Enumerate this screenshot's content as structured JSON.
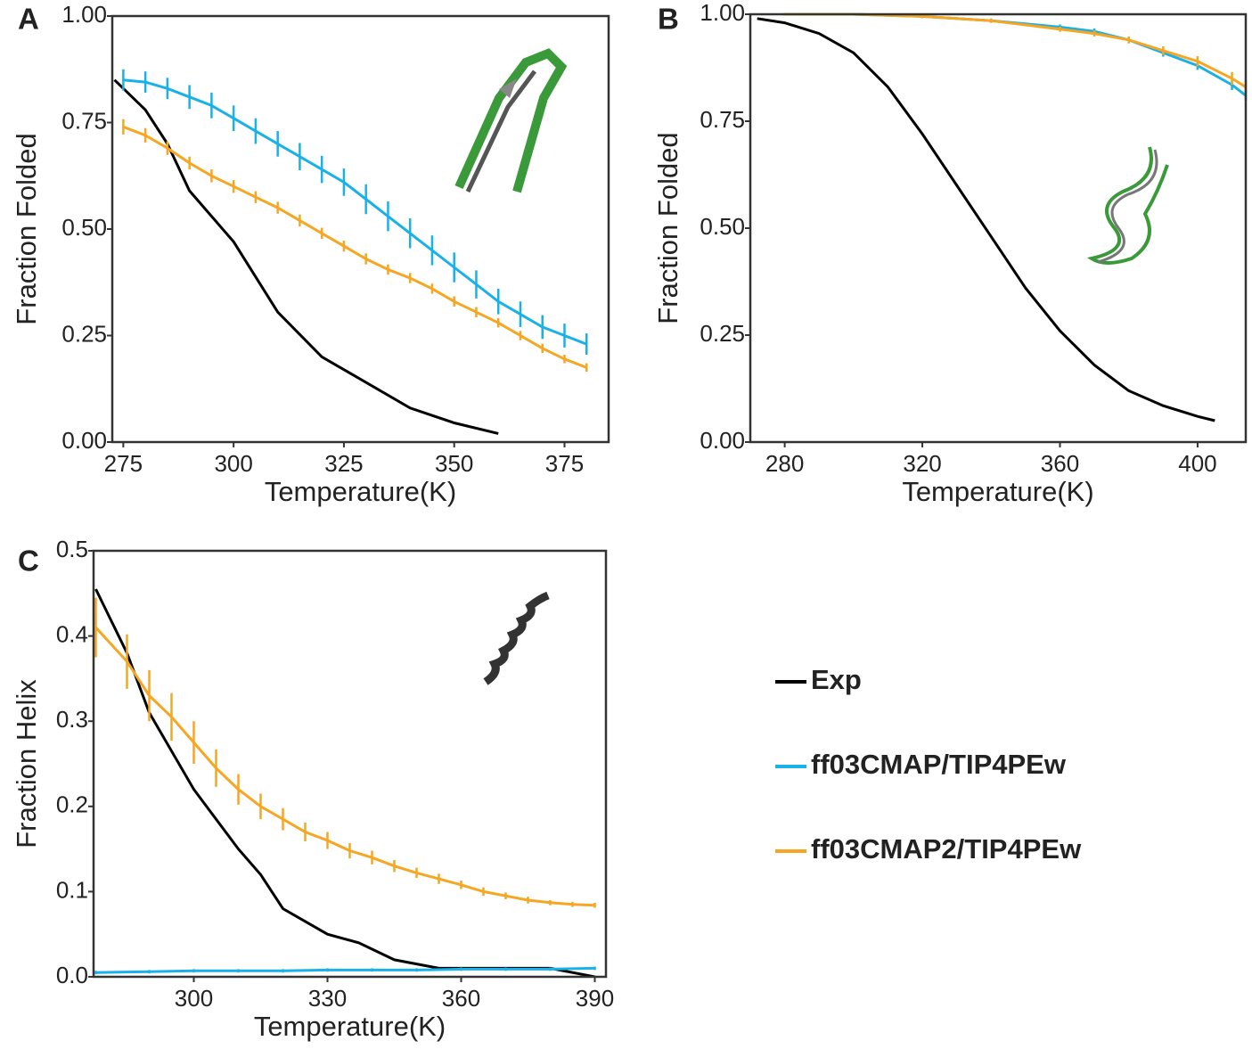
{
  "chart_data": [
    {
      "type": "line",
      "label": "A",
      "x_label": "Temperature(K)",
      "y_label": "Fraction Folded",
      "xlim": [
        272.5,
        385
      ],
      "xticks": [
        275,
        300,
        325,
        350,
        375
      ],
      "ylim": [
        0,
        1
      ],
      "yticks": [
        {
          "value": 0,
          "label": "0.00"
        },
        0.25,
        {
          "value": 0.5,
          "label": "0.50"
        },
        0.75,
        {
          "value": 1,
          "label": "1.00"
        }
      ],
      "series": [
        {
          "name": "Exp",
          "color": "#000000",
          "x": [
            273,
            280,
            285,
            290,
            300,
            310,
            320,
            330,
            340,
            350,
            360
          ],
          "values": [
            0.85,
            0.78,
            0.7,
            0.59,
            0.47,
            0.305,
            0.2,
            0.14,
            0.08,
            0.045,
            0.02
          ]
        },
        {
          "name": "ff03CMAP/TIP4PEw",
          "color": "#1ab0e8",
          "x": [
            275,
            280,
            285,
            290,
            295,
            300,
            305,
            310,
            315,
            320,
            325,
            330,
            335,
            340,
            345,
            350,
            355,
            360,
            365,
            370,
            375,
            380
          ],
          "values": [
            0.85,
            0.845,
            0.83,
            0.81,
            0.79,
            0.76,
            0.73,
            0.7,
            0.67,
            0.64,
            0.61,
            0.57,
            0.53,
            0.49,
            0.45,
            0.41,
            0.37,
            0.33,
            0.3,
            0.27,
            0.25,
            0.23
          ],
          "errors": [
            0.025,
            0.025,
            0.025,
            0.028,
            0.03,
            0.03,
            0.03,
            0.03,
            0.032,
            0.032,
            0.032,
            0.035,
            0.035,
            0.035,
            0.035,
            0.035,
            0.033,
            0.03,
            0.03,
            0.028,
            0.028,
            0.025
          ]
        },
        {
          "name": "ff03CMAP2/TIP4PEw",
          "color": "#f5a623",
          "x": [
            275,
            280,
            285,
            290,
            295,
            300,
            305,
            310,
            315,
            320,
            325,
            330,
            335,
            340,
            345,
            350,
            355,
            360,
            365,
            370,
            375,
            380
          ],
          "values": [
            0.74,
            0.72,
            0.69,
            0.655,
            0.625,
            0.6,
            0.575,
            0.55,
            0.52,
            0.49,
            0.46,
            0.43,
            0.405,
            0.385,
            0.36,
            0.33,
            0.305,
            0.28,
            0.25,
            0.22,
            0.195,
            0.175
          ],
          "errors": [
            0.018,
            0.017,
            0.016,
            0.015,
            0.015,
            0.015,
            0.014,
            0.014,
            0.014,
            0.013,
            0.013,
            0.013,
            0.012,
            0.012,
            0.012,
            0.012,
            0.012,
            0.011,
            0.011,
            0.011,
            0.01,
            0.01
          ]
        }
      ]
    },
    {
      "type": "line",
      "label": "B",
      "x_label": "Temperature(K)",
      "y_label": "Fraction Folded",
      "xlim": [
        270,
        414
      ],
      "xticks": [
        280,
        320,
        360,
        400
      ],
      "ylim": [
        0,
        1
      ],
      "yticks": [
        {
          "value": 0,
          "label": "0.00"
        },
        0.25,
        {
          "value": 0.5,
          "label": "0.50"
        },
        0.75,
        {
          "value": 1,
          "label": "1.00"
        }
      ],
      "series": [
        {
          "name": "Exp",
          "color": "#000000",
          "x": [
            272,
            280,
            290,
            300,
            310,
            320,
            330,
            340,
            350,
            360,
            370,
            380,
            390,
            400,
            405
          ],
          "values": [
            0.99,
            0.98,
            0.955,
            0.91,
            0.83,
            0.72,
            0.6,
            0.48,
            0.36,
            0.26,
            0.18,
            0.12,
            0.085,
            0.06,
            0.05
          ]
        },
        {
          "name": "ff03CMAP/TIP4PEw",
          "color": "#1ab0e8",
          "x": [
            280,
            300,
            320,
            340,
            360,
            370,
            380,
            390,
            400,
            410,
            414
          ],
          "values": [
            1.0,
            1.0,
            0.995,
            0.985,
            0.97,
            0.96,
            0.94,
            0.91,
            0.88,
            0.835,
            0.81
          ],
          "errors": [
            0.003,
            0.003,
            0.004,
            0.005,
            0.006,
            0.007,
            0.008,
            0.009,
            0.01,
            0.012,
            0.012
          ]
        },
        {
          "name": "ff03CMAP2/TIP4PEw",
          "color": "#f5a623",
          "x": [
            280,
            300,
            320,
            340,
            360,
            370,
            380,
            390,
            400,
            410,
            414
          ],
          "values": [
            1.0,
            1.0,
            0.995,
            0.985,
            0.965,
            0.955,
            0.94,
            0.915,
            0.89,
            0.85,
            0.83
          ],
          "errors": [
            0.003,
            0.003,
            0.004,
            0.005,
            0.006,
            0.007,
            0.008,
            0.01,
            0.012,
            0.015,
            0.016
          ]
        }
      ]
    },
    {
      "type": "line",
      "label": "C",
      "x_label": "Temperature(K)",
      "y_label": "Fraction Helix",
      "xlim": [
        277.5,
        392.5
      ],
      "xticks": [
        300,
        330,
        360,
        390
      ],
      "ylim": [
        0,
        0.5
      ],
      "yticks": [
        {
          "value": 0,
          "label": "0.0"
        },
        0.1,
        0.2,
        0.3,
        0.4,
        0.5
      ],
      "series": [
        {
          "name": "Exp",
          "color": "#000000",
          "x": [
            278,
            285,
            290,
            300,
            310,
            315,
            320,
            330,
            337,
            345,
            355,
            380,
            390
          ],
          "values": [
            0.455,
            0.38,
            0.31,
            0.22,
            0.15,
            0.12,
            0.08,
            0.05,
            0.04,
            0.02,
            0.01,
            0.01,
            0.0
          ]
        },
        {
          "name": "ff03CMAP/TIP4PEw",
          "color": "#1ab0e8",
          "x": [
            278,
            290,
            300,
            310,
            320,
            330,
            340,
            350,
            360,
            370,
            380,
            390
          ],
          "values": [
            0.005,
            0.006,
            0.007,
            0.007,
            0.007,
            0.008,
            0.008,
            0.008,
            0.009,
            0.009,
            0.009,
            0.01
          ],
          "errors": [
            0.002,
            0.002,
            0.002,
            0.002,
            0.002,
            0.002,
            0.002,
            0.002,
            0.002,
            0.002,
            0.002,
            0.002
          ]
        },
        {
          "name": "ff03CMAP2/TIP4PEw",
          "color": "#f5a623",
          "x": [
            278,
            285,
            290,
            295,
            300,
            305,
            310,
            315,
            320,
            325,
            330,
            335,
            340,
            345,
            350,
            355,
            360,
            365,
            370,
            375,
            380,
            385,
            390
          ],
          "values": [
            0.41,
            0.37,
            0.33,
            0.305,
            0.275,
            0.245,
            0.22,
            0.2,
            0.185,
            0.17,
            0.16,
            0.148,
            0.14,
            0.13,
            0.122,
            0.115,
            0.108,
            0.1,
            0.095,
            0.09,
            0.087,
            0.085,
            0.084
          ],
          "errors": [
            0.035,
            0.032,
            0.03,
            0.028,
            0.025,
            0.022,
            0.018,
            0.015,
            0.013,
            0.011,
            0.01,
            0.009,
            0.008,
            0.007,
            0.006,
            0.006,
            0.005,
            0.005,
            0.004,
            0.004,
            0.003,
            0.003,
            0.003
          ]
        }
      ]
    }
  ]
}
